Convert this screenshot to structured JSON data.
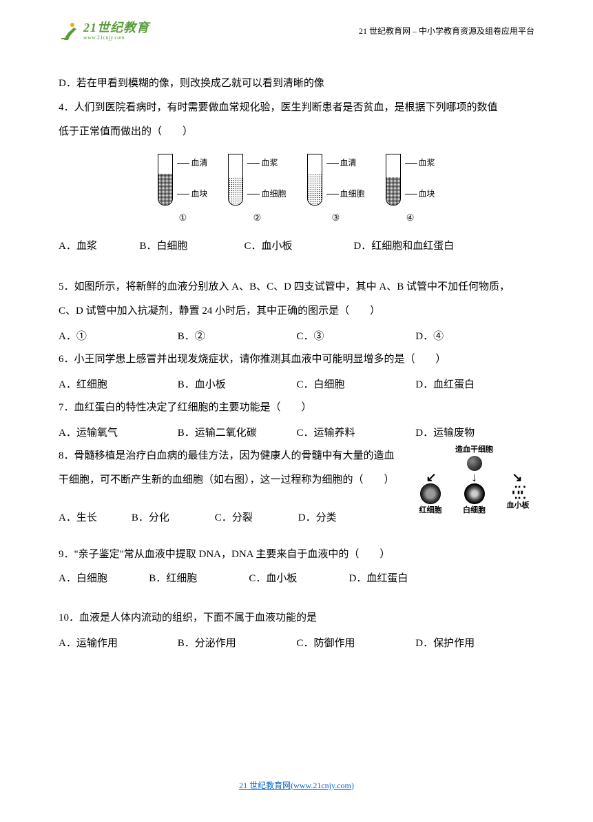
{
  "header": {
    "logo_main": "21世纪教育",
    "logo_sub": "www.21cnjy.com",
    "logo_color": "#5a9e3a",
    "right_text": "21 世纪教育网  – 中小学教育资源及组卷应用平台"
  },
  "q3": {
    "optD": "D．若在甲看到模糊的像，则改换成乙就可以看到清晰的像"
  },
  "q4": {
    "stem1": "4．人们到医院看病时，有时需要做血常规化验，医生判断患者是否贫血，是根据下列哪项的数值",
    "stem2": "低于正常值而做出的（　　）",
    "tubes": [
      {
        "top": "血清",
        "bottom": "血块",
        "top_h": 20,
        "bot_h": 45,
        "top_style": "plain",
        "bot_style": "hatched",
        "num": "①"
      },
      {
        "top": "血浆",
        "bottom": "血细胞",
        "top_h": 24,
        "bot_h": 40,
        "top_style": "plain",
        "bot_style": "dotted",
        "num": "②"
      },
      {
        "top": "血清",
        "bottom": "血细胞",
        "top_h": 20,
        "bot_h": 45,
        "top_style": "plain",
        "bot_style": "dotted",
        "num": "③"
      },
      {
        "top": "血浆",
        "bottom": "血块",
        "top_h": 24,
        "bot_h": 40,
        "top_style": "plain",
        "bot_style": "hatched",
        "num": "④"
      }
    ],
    "optA": "A．血浆",
    "optB": "B．白细胞",
    "optC": "C．血小板",
    "optD": "D．红细胞和血红蛋白"
  },
  "q5": {
    "stem1": "5．如图所示，将新鲜的血液分别放入 A、B、C、D 四支试管中，其中 A、B 试管中不加任何物质，",
    "stem2": "C、D 试管中加入抗凝剂，静置 24 小时后，其中正确的图示是（　　）",
    "optA": "A．①",
    "optB": "B．②",
    "optC": "C．③",
    "optD": "D．④"
  },
  "q6": {
    "stem": "6．小王同学患上感冒并出现发烧症状，请你推测其血液中可能明显增多的是（　　）",
    "optA": "A．红细胞",
    "optB": "B．血小板",
    "optC": "C．白细胞",
    "optD": "D．血红蛋白"
  },
  "q7": {
    "stem": "7．血红蛋白的特性决定了红细胞的主要功能是（　　）",
    "optA": "A．运输氧气",
    "optB": "B．运输二氧化碳",
    "optC": "C．运输养料",
    "optD": "D．运输废物"
  },
  "q8": {
    "stem1": "8．骨髓移植是治疗白血病的最佳方法，因为健康人的骨髓中有大量的造血",
    "stem2": "干细胞，可不断产生新的血细胞（如右图），这一过程称为细胞的（　　）",
    "optA": "A．生长",
    "optB": "B．分化",
    "optC": "C．分裂",
    "optD": "D．分类",
    "fig": {
      "title": "造血干细胞",
      "c1": "红细胞",
      "c2": "白细胞",
      "c3": "血小板"
    }
  },
  "q9": {
    "stem": "9．\"亲子鉴定\"常从血液中提取 DNA，DNA 主要来自于血液中的（　　）",
    "optA": "A．白细胞",
    "optB": "B．红细胞",
    "optC": "C．血小板",
    "optD": "D．血红蛋白"
  },
  "q10": {
    "stem": "10．血液是人体内流动的组织，下面不属于血液功能的是",
    "optA": "A．运输作用",
    "optB": "B．分泌作用",
    "optC": "C．防御作用",
    "optD": "D．保护作用"
  },
  "footer": {
    "text_prefix": "21 世纪教育网",
    "link_text": "(www.21cnjy.com)"
  }
}
